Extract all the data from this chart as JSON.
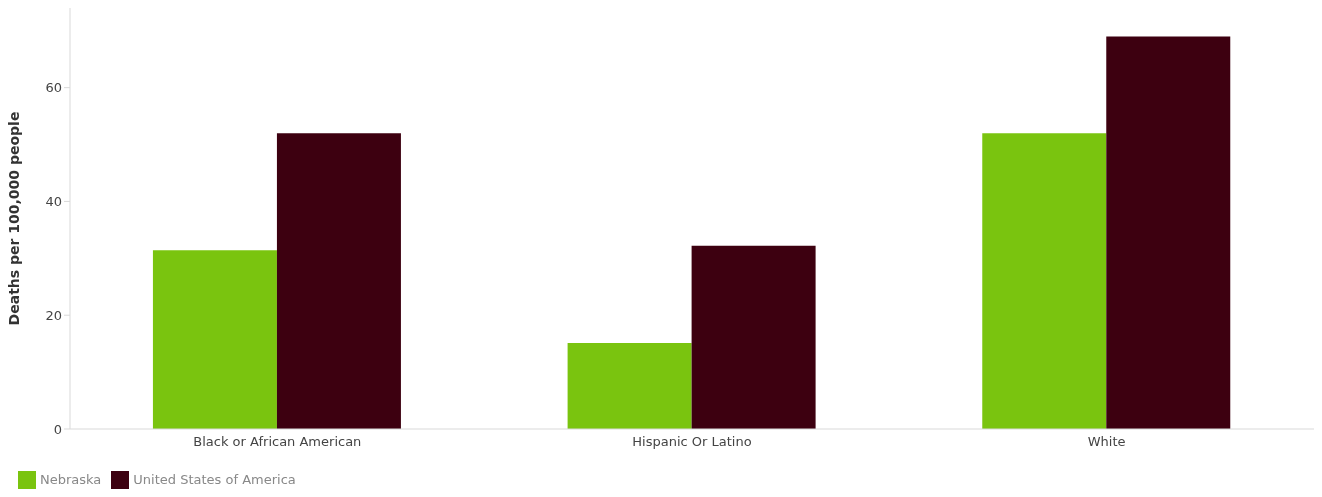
{
  "chart_data": {
    "type": "bar",
    "ylabel": "Deaths per 100,000 people",
    "categories": [
      "Black or African American",
      "Hispanic Or Latino",
      "White"
    ],
    "series": [
      {
        "name": "Nebraska",
        "color": "#7ac40f",
        "values": [
          31.4,
          15.1,
          52.0
        ]
      },
      {
        "name": "United States of America",
        "color": "#3d0010",
        "values": [
          52.0,
          32.2,
          69.0
        ]
      }
    ],
    "ylim": [
      0,
      74
    ],
    "yticks": [
      0,
      20,
      40,
      60
    ],
    "grid": false,
    "legend": "bottom left"
  }
}
